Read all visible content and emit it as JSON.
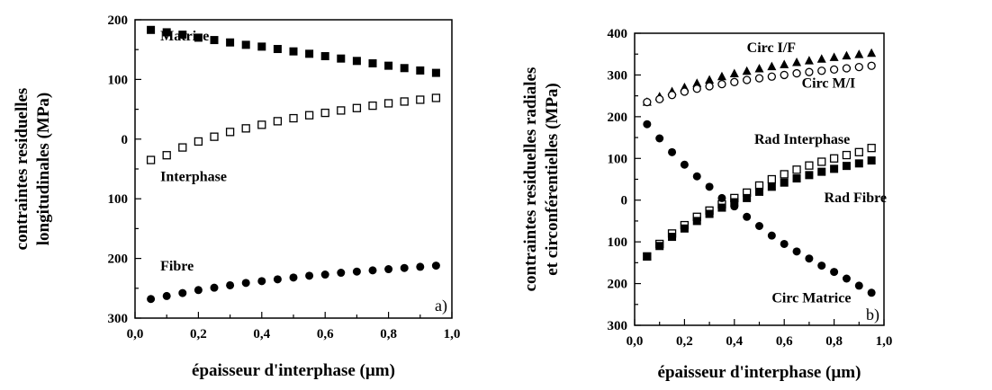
{
  "chart_data": [
    {
      "type": "scatter",
      "panel_label": "a)",
      "xlabel": "épaisseur d'interphase (µm)",
      "ylabel_lines": [
        "contraintes residuelles",
        "longitudinales (MPa)"
      ],
      "xlim": [
        0.0,
        1.0
      ],
      "ylim": [
        -300,
        200
      ],
      "x_ticks": [
        0.0,
        0.2,
        0.4,
        0.6,
        0.8,
        1.0
      ],
      "x_tick_labels": [
        "0,0",
        "0,2",
        "0,4",
        "0,6",
        "0,8",
        "1,0"
      ],
      "y_ticks": [
        200,
        100,
        0,
        -100,
        -200,
        -300
      ],
      "y_tick_labels": [
        "200",
        "100",
        "0",
        "100",
        "200",
        "300"
      ],
      "grid": false,
      "x": [
        0.05,
        0.1,
        0.15,
        0.2,
        0.25,
        0.3,
        0.35,
        0.4,
        0.45,
        0.5,
        0.55,
        0.6,
        0.65,
        0.7,
        0.75,
        0.8,
        0.85,
        0.9,
        0.95
      ],
      "series": [
        {
          "name": "Matrice",
          "marker": "filled-square",
          "label_at": [
            0.08,
            165
          ],
          "values": [
            183,
            179,
            175,
            170,
            166,
            162,
            158,
            155,
            151,
            147,
            143,
            139,
            135,
            131,
            127,
            123,
            119,
            115,
            111
          ]
        },
        {
          "name": "Interphase",
          "marker": "open-square",
          "label_at": [
            0.08,
            -70
          ],
          "values": [
            -35,
            -27,
            -14,
            -4,
            4,
            12,
            18,
            24,
            30,
            35,
            40,
            44,
            48,
            52,
            56,
            60,
            63,
            66,
            69
          ]
        },
        {
          "name": "Fibre",
          "marker": "filled-circle",
          "label_at": [
            0.08,
            -220
          ],
          "values": [
            -268,
            -263,
            -258,
            -253,
            -249,
            -245,
            -241,
            -238,
            -235,
            -232,
            -229,
            -227,
            -224,
            -222,
            -220,
            -218,
            -216,
            -214,
            -212
          ]
        }
      ]
    },
    {
      "type": "scatter",
      "panel_label": "b)",
      "xlabel": "épaisseur d'interphase (µm)",
      "ylabel_lines": [
        "contraintes residuelles radiales",
        "et circonférentielles (MPa)"
      ],
      "xlim": [
        0.0,
        1.0
      ],
      "ylim": [
        -300,
        400
      ],
      "x_ticks": [
        0.0,
        0.2,
        0.4,
        0.6,
        0.8,
        1.0
      ],
      "x_tick_labels": [
        "0,0",
        "0,2",
        "0,4",
        "0,6",
        "0,8",
        "1,0"
      ],
      "y_ticks": [
        400,
        300,
        200,
        100,
        0,
        -100,
        -200,
        -300
      ],
      "y_tick_labels": [
        "400",
        "300",
        "200",
        "100",
        "0",
        "100",
        "200",
        "300"
      ],
      "grid": false,
      "x": [
        0.05,
        0.1,
        0.15,
        0.2,
        0.25,
        0.3,
        0.35,
        0.4,
        0.45,
        0.5,
        0.55,
        0.6,
        0.65,
        0.7,
        0.75,
        0.8,
        0.85,
        0.9,
        0.95
      ],
      "series": [
        {
          "name": "Circ I/F",
          "marker": "filled-triangle",
          "label_at": [
            0.45,
            355
          ],
          "values": [
            235,
            248,
            260,
            270,
            280,
            288,
            296,
            303,
            309,
            315,
            320,
            325,
            330,
            334,
            338,
            342,
            346,
            349,
            352
          ]
        },
        {
          "name": "Circ M/I",
          "marker": "open-circle",
          "label_at": [
            0.67,
            270
          ],
          "values": [
            235,
            242,
            252,
            260,
            267,
            273,
            278,
            283,
            288,
            292,
            296,
            300,
            304,
            307,
            310,
            313,
            316,
            319,
            322
          ]
        },
        {
          "name": "Rad Interphase",
          "marker": "open-square",
          "label_at": [
            0.48,
            135
          ],
          "values": [
            -135,
            -105,
            -80,
            -60,
            -40,
            -25,
            -10,
            5,
            18,
            35,
            50,
            62,
            73,
            83,
            92,
            100,
            108,
            115,
            125
          ]
        },
        {
          "name": "Rad Fibre",
          "marker": "filled-square",
          "label_at": [
            0.76,
            -5
          ],
          "values": [
            -135,
            -110,
            -88,
            -68,
            -50,
            -33,
            -18,
            -5,
            5,
            20,
            32,
            42,
            52,
            60,
            68,
            75,
            82,
            88,
            95
          ]
        },
        {
          "name": "Circ Matrice",
          "marker": "filled-circle",
          "label_at": [
            0.55,
            -245
          ],
          "values": [
            182,
            148,
            115,
            85,
            57,
            32,
            5,
            -15,
            -40,
            -62,
            -85,
            -105,
            -123,
            -140,
            -157,
            -172,
            -188,
            -205,
            -222
          ]
        }
      ]
    }
  ]
}
